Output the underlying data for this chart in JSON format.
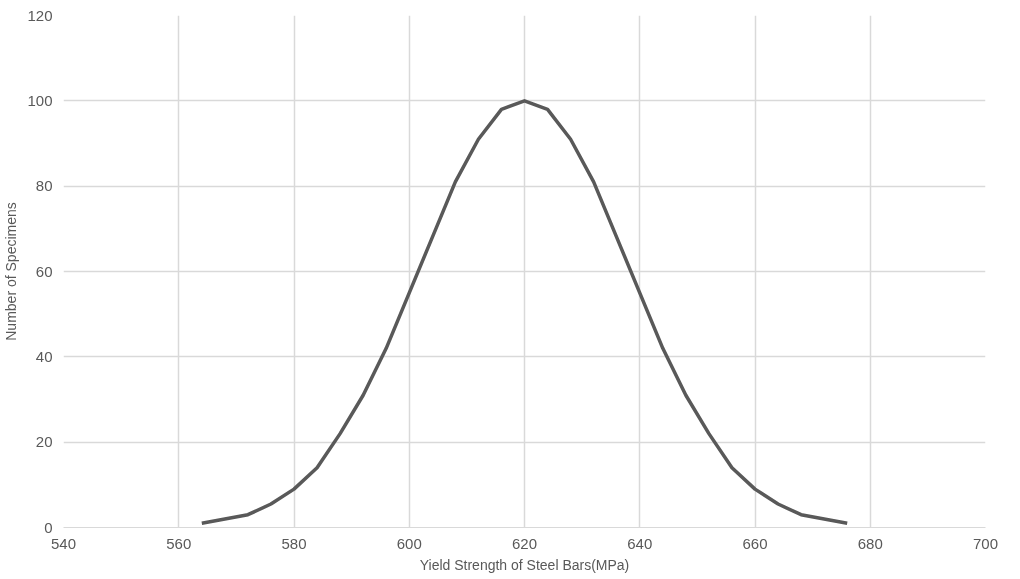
{
  "chart_data": {
    "type": "line",
    "xlabel": "Yield Strength of Steel Bars(MPa)",
    "ylabel": "Number of Specimens",
    "x": [
      564,
      568,
      572,
      576,
      580,
      584,
      588,
      592,
      596,
      600,
      604,
      608,
      612,
      616,
      620,
      624,
      628,
      632,
      636,
      640,
      644,
      648,
      652,
      656,
      660,
      664,
      668,
      672,
      676
    ],
    "series": [
      {
        "color": "#595959",
        "values": [
          1,
          2,
          3,
          5.5,
          9,
          14,
          22,
          31,
          42,
          55,
          68,
          81,
          91,
          98,
          100,
          98,
          91,
          81,
          68,
          55,
          42,
          31,
          22,
          14,
          9,
          5.5,
          3,
          2,
          1
        ]
      }
    ],
    "xlim": [
      540,
      700
    ],
    "xticks": [
      540,
      560,
      580,
      600,
      620,
      640,
      660,
      680,
      700
    ],
    "ylim": [
      0,
      120
    ],
    "yticks": [
      0,
      20,
      40,
      60,
      80,
      100,
      120
    ],
    "grid": true,
    "marker": "none",
    "line_style": "solid"
  }
}
